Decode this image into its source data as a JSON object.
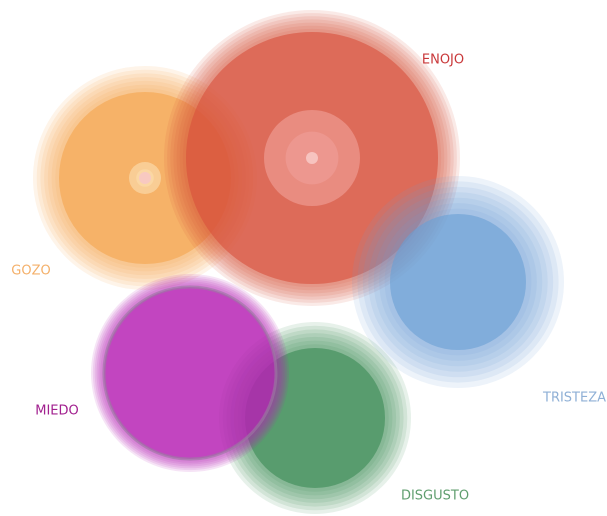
{
  "labels": {
    "enojo": "ENOJO",
    "gozo": "GOZO",
    "miedo": "MIEDO",
    "disgusto": "DISGUSTO",
    "tristeza": "TRISTEZA"
  }
}
